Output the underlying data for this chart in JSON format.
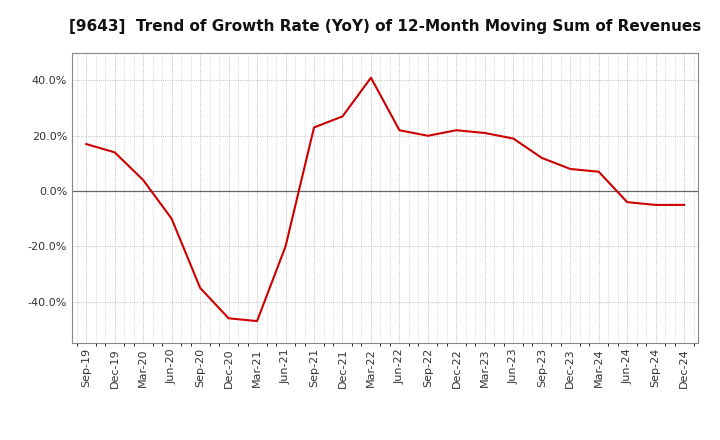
{
  "title": "[9643]  Trend of Growth Rate (YoY) of 12-Month Moving Sum of Revenues",
  "x_labels": [
    "Sep-19",
    "Dec-19",
    "Mar-20",
    "Jun-20",
    "Sep-20",
    "Dec-20",
    "Mar-21",
    "Jun-21",
    "Sep-21",
    "Dec-21",
    "Mar-22",
    "Jun-22",
    "Sep-22",
    "Dec-22",
    "Mar-23",
    "Jun-23",
    "Sep-23",
    "Dec-23",
    "Mar-24",
    "Jun-24",
    "Sep-24",
    "Dec-24"
  ],
  "values": [
    0.17,
    0.14,
    0.04,
    -0.1,
    -0.35,
    -0.46,
    -0.47,
    -0.2,
    0.23,
    0.27,
    0.41,
    0.22,
    0.2,
    0.22,
    0.21,
    0.19,
    0.12,
    0.08,
    0.07,
    -0.04,
    -0.05,
    -0.05
  ],
  "line_color": "#cc0000",
  "line_width": 1.5,
  "ylim": [
    -0.55,
    0.5
  ],
  "yticks": [
    -0.4,
    -0.2,
    0.0,
    0.2,
    0.4
  ],
  "grid_color": "#aaaaaa",
  "zero_line_color": "#666666",
  "background_color": "#ffffff",
  "title_fontsize": 11,
  "tick_fontsize": 8,
  "plot_bg_color": "#ffffff"
}
